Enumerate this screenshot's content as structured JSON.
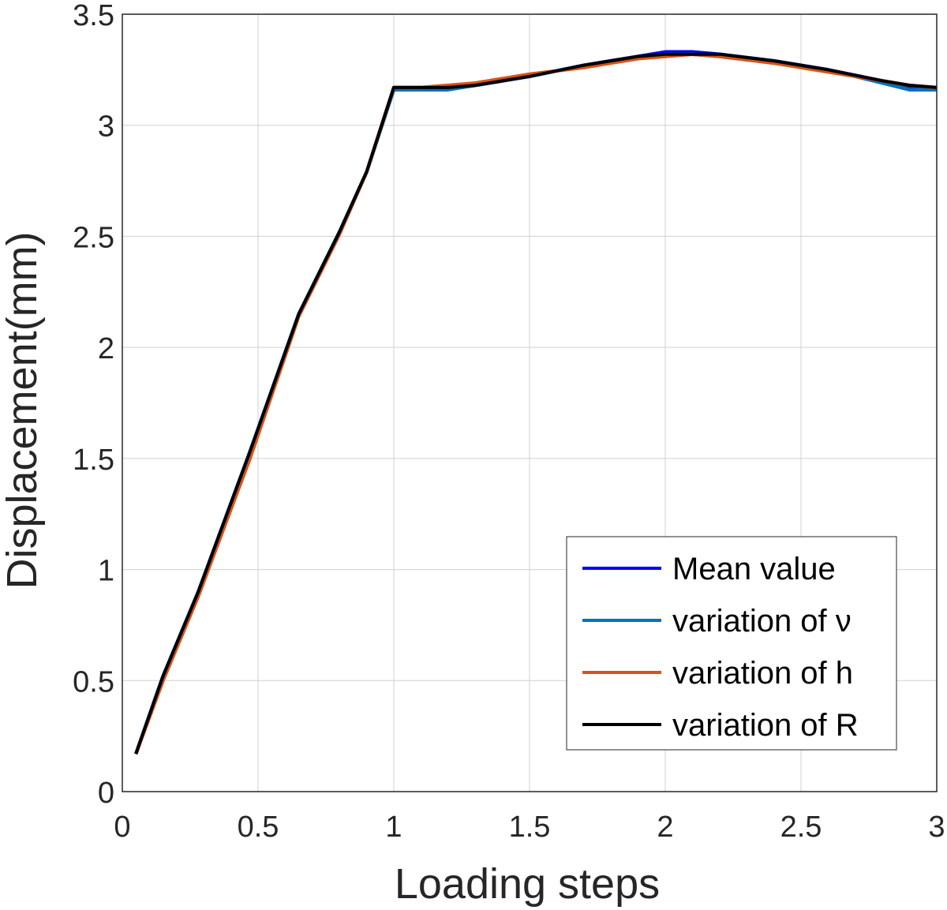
{
  "chart_data": {
    "type": "line",
    "title": "",
    "xlabel": "Loading steps",
    "ylabel": "Displacement(mm)",
    "xlim": [
      0,
      3
    ],
    "ylim": [
      0,
      3.5
    ],
    "grid": true,
    "legend_position": "bottom-right",
    "xticks": [
      "0",
      "0.5",
      "1",
      "1.5",
      "2",
      "2.5",
      "3"
    ],
    "yticks": [
      "0",
      "0.5",
      "1",
      "1.5",
      "2",
      "2.5",
      "3",
      "3.5"
    ],
    "xtick_values": [
      0,
      0.5,
      1,
      1.5,
      2,
      2.5,
      3
    ],
    "ytick_values": [
      0,
      0.5,
      1,
      1.5,
      2,
      2.5,
      3,
      3.5
    ],
    "series": [
      {
        "name": "Mean value",
        "color": "#0000ff",
        "x": [
          0.05,
          0.15,
          0.28,
          0.47,
          0.65,
          0.8,
          0.9,
          1.0,
          1.1,
          1.2,
          1.3,
          1.5,
          1.7,
          1.9,
          2.0,
          2.1,
          2.2,
          2.4,
          2.6,
          2.8,
          2.9,
          3.0
        ],
        "y": [
          0.17,
          0.52,
          0.9,
          1.53,
          2.15,
          2.52,
          2.79,
          3.17,
          3.17,
          3.17,
          3.18,
          3.22,
          3.27,
          3.31,
          3.33,
          3.33,
          3.32,
          3.29,
          3.25,
          3.2,
          3.17,
          3.17
        ]
      },
      {
        "name": "variation of ν",
        "color": "#0072bd",
        "x": [
          0.05,
          0.15,
          0.28,
          0.47,
          0.65,
          0.8,
          0.9,
          1.0,
          1.1,
          1.2,
          1.3,
          1.5,
          1.7,
          1.9,
          2.0,
          2.1,
          2.2,
          2.4,
          2.6,
          2.8,
          2.9,
          3.0
        ],
        "y": [
          0.17,
          0.52,
          0.9,
          1.53,
          2.15,
          2.52,
          2.79,
          3.16,
          3.16,
          3.16,
          3.18,
          3.22,
          3.27,
          3.3,
          3.32,
          3.32,
          3.31,
          3.28,
          3.25,
          3.19,
          3.16,
          3.16
        ]
      },
      {
        "name": "variation of h",
        "color": "#d95319",
        "x": [
          0.05,
          0.15,
          0.28,
          0.47,
          0.65,
          0.8,
          0.9,
          1.0,
          1.1,
          1.2,
          1.3,
          1.5,
          1.7,
          1.9,
          2.0,
          2.1,
          2.2,
          2.4,
          2.6,
          2.8,
          2.9,
          3.0
        ],
        "y": [
          0.17,
          0.5,
          0.88,
          1.5,
          2.14,
          2.51,
          2.79,
          3.17,
          3.17,
          3.18,
          3.19,
          3.23,
          3.26,
          3.3,
          3.31,
          3.32,
          3.31,
          3.28,
          3.24,
          3.2,
          3.18,
          3.17
        ]
      },
      {
        "name": "variation of R",
        "color": "#000000",
        "x": [
          0.05,
          0.15,
          0.28,
          0.47,
          0.65,
          0.8,
          0.9,
          1.0,
          1.1,
          1.2,
          1.3,
          1.5,
          1.7,
          1.9,
          2.0,
          2.1,
          2.2,
          2.4,
          2.6,
          2.8,
          2.9,
          3.0
        ],
        "y": [
          0.17,
          0.52,
          0.9,
          1.53,
          2.15,
          2.52,
          2.79,
          3.17,
          3.17,
          3.17,
          3.18,
          3.22,
          3.27,
          3.31,
          3.32,
          3.32,
          3.32,
          3.29,
          3.25,
          3.2,
          3.18,
          3.17
        ]
      }
    ]
  }
}
